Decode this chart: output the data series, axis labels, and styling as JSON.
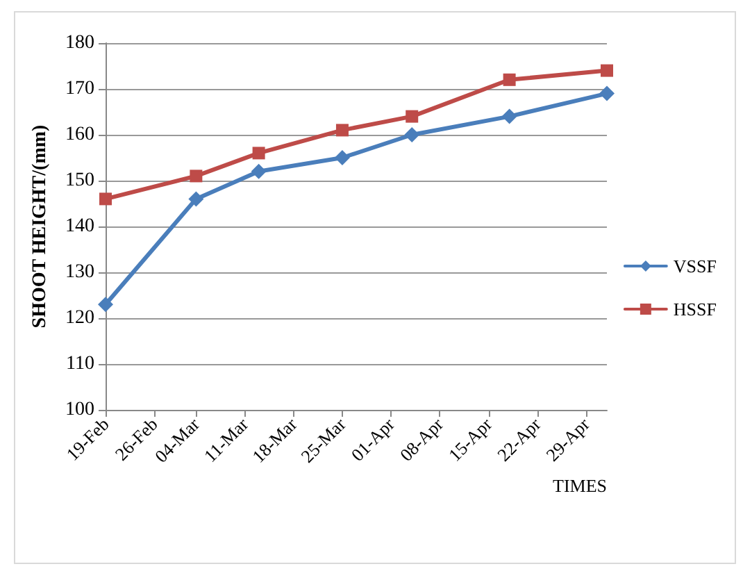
{
  "chart_data": {
    "type": "line",
    "ylabel": "SHOOT HEIGHT/(mm)",
    "xlabel": "TIMES",
    "series": [
      {
        "name": "VSSF",
        "color": "#4a7ebb",
        "marker": "diamond",
        "x": [
          "--02-19",
          "--03-04",
          "--03-13",
          "--03-25",
          "--04-04",
          "--04-18",
          "--05-02"
        ],
        "values": [
          123,
          146,
          152,
          155,
          160,
          164,
          169
        ]
      },
      {
        "name": "HSSF",
        "color": "#be4b48",
        "marker": "square",
        "x": [
          "--02-19",
          "--03-04",
          "--03-13",
          "--03-25",
          "--04-04",
          "--04-18",
          "--05-02"
        ],
        "values": [
          146,
          151,
          156,
          161,
          164,
          172,
          174
        ]
      }
    ],
    "xlim": [
      "--02-19",
      "--05-02"
    ],
    "xticks": [
      {
        "value": "--02-19",
        "label": "19-Feb"
      },
      {
        "value": "--02-26",
        "label": "26-Feb"
      },
      {
        "value": "--03-04",
        "label": "04-Mar"
      },
      {
        "value": "--03-11",
        "label": "11-Mar"
      },
      {
        "value": "--03-18",
        "label": "18-Mar"
      },
      {
        "value": "--03-25",
        "label": "25-Mar"
      },
      {
        "value": "--04-01",
        "label": "01-Apr"
      },
      {
        "value": "--04-08",
        "label": "08-Apr"
      },
      {
        "value": "--04-15",
        "label": "15-Apr"
      },
      {
        "value": "--04-22",
        "label": "22-Apr"
      },
      {
        "value": "--04-29",
        "label": "29-Apr"
      }
    ],
    "ylim": [
      100,
      180
    ],
    "yticks": [
      100,
      110,
      120,
      130,
      140,
      150,
      160,
      170,
      180
    ],
    "grid": "y",
    "legend": "right",
    "line_style": "solid"
  }
}
